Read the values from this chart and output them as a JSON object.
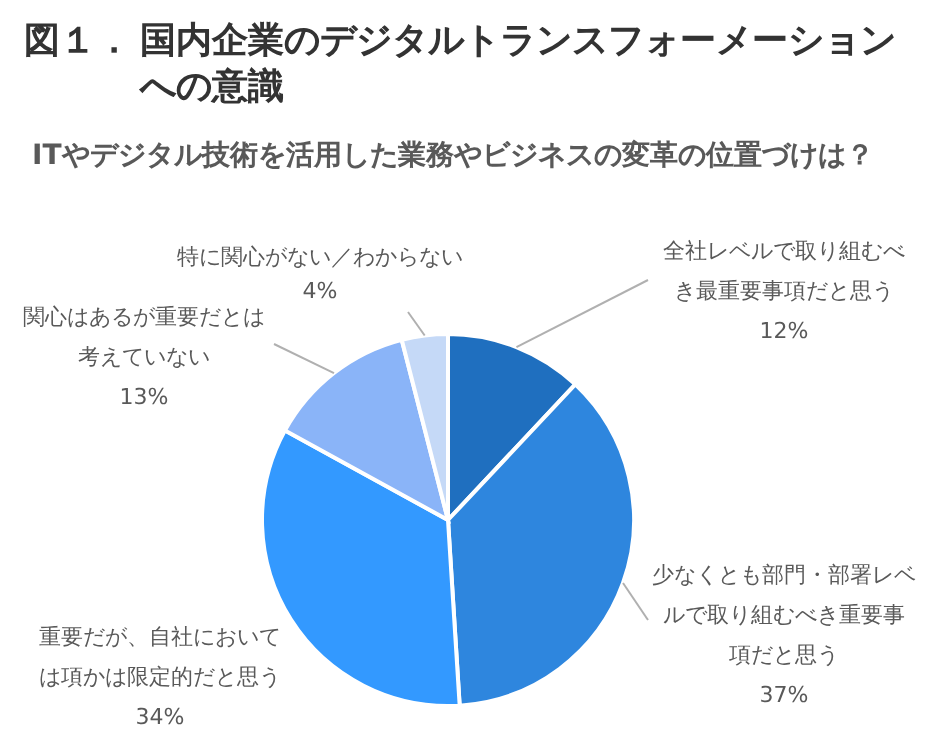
{
  "chart_data": {
    "type": "pie",
    "title": "図１．国内企業のデジタルトランスフォーメーションへの意識",
    "subtitle": "ITやデジタル技術を活用した業務やビジネスの変革の位置づけは？",
    "categories": [
      "全社レベルで取り組むべき最重要事項だと思う",
      "少なくとも部門・部署レベルで取り組むべき重要事項だと思う",
      "重要だが、自社においては項かは限定的だと思う",
      "関心はあるが重要だとは考えていない",
      "特に関心がない／わからない"
    ],
    "values": [
      12,
      37,
      34,
      13,
      4
    ],
    "colors": [
      "#1f6fbf",
      "#2e86de",
      "#3399ff",
      "#8ab4f8",
      "#c5d9f7"
    ],
    "value_labels": [
      "12%",
      "37%",
      "34%",
      "13%",
      "4%"
    ]
  }
}
